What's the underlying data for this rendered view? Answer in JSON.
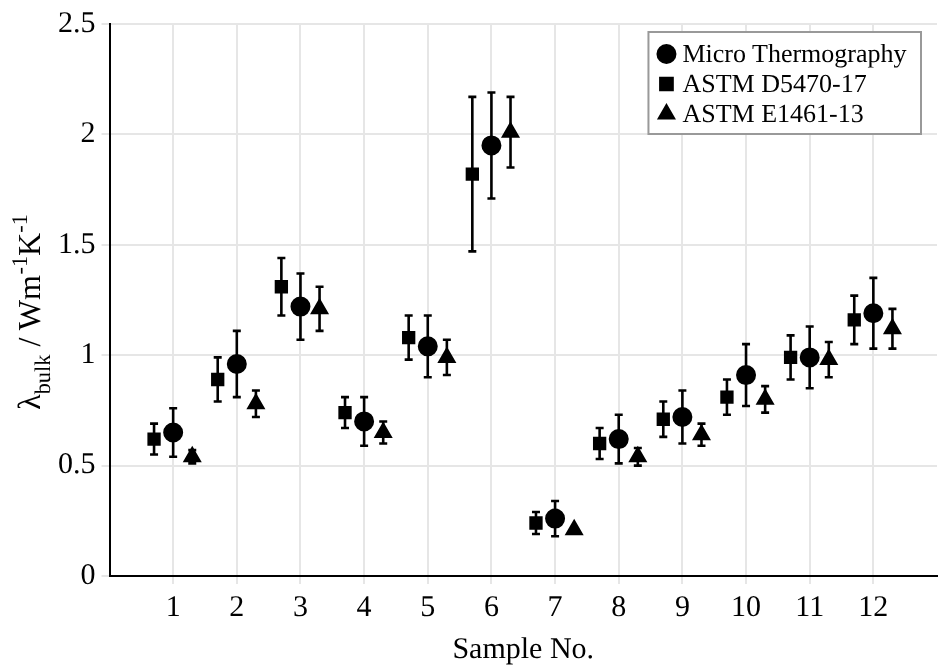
{
  "chart_data": {
    "type": "scatter",
    "xlabel": "Sample No.",
    "ylabel": "λ$_{bulk}$ / Wm$^{-1}$K$^{-1}$",
    "xlim": [
      0,
      13
    ],
    "xticks": [
      1,
      2,
      3,
      4,
      5,
      6,
      7,
      8,
      9,
      10,
      11,
      12
    ],
    "ylim": [
      0,
      2.5
    ],
    "yticks": [
      0,
      0.5,
      1,
      1.5,
      2,
      2.5
    ],
    "grid": true,
    "legend": "top right",
    "series": [
      {
        "name": "Micro Thermography",
        "color": "#000000",
        "marker": "circle",
        "x": [
          1,
          2,
          3,
          4,
          5,
          6,
          7,
          8,
          9,
          10,
          11,
          12
        ],
        "values": [
          0.65,
          0.96,
          1.22,
          0.7,
          1.04,
          1.95,
          0.26,
          0.62,
          0.72,
          0.91,
          0.99,
          1.19
        ],
        "errors": [
          0.11,
          0.15,
          0.15,
          0.11,
          0.14,
          0.24,
          0.08,
          0.11,
          0.12,
          0.14,
          0.14,
          0.16
        ]
      },
      {
        "name": "ASTM D5470-17",
        "color": "#000000",
        "marker": "square",
        "x": [
          0.7,
          1.7,
          2.7,
          3.7,
          4.7,
          5.7,
          6.7,
          7.7,
          8.7,
          9.7,
          10.7,
          11.7
        ],
        "values": [
          0.62,
          0.89,
          1.31,
          0.74,
          1.08,
          1.82,
          0.24,
          0.6,
          0.71,
          0.81,
          0.99,
          1.16
        ],
        "errors": [
          0.07,
          0.1,
          0.13,
          0.07,
          0.1,
          0.35,
          0.05,
          0.07,
          0.08,
          0.08,
          0.1,
          0.11
        ]
      },
      {
        "name": "ASTM E1461-13",
        "color": "#000000",
        "marker": "triangle",
        "x": [
          1.3,
          2.3,
          3.3,
          4.3,
          5.3,
          6.3,
          7.3,
          8.3,
          9.3,
          10.3,
          11.3,
          12.3
        ],
        "values": [
          0.54,
          0.78,
          1.21,
          0.65,
          0.99,
          2.01,
          0.21,
          0.54,
          0.64,
          0.8,
          0.98,
          1.12
        ],
        "errors": [
          0.03,
          0.06,
          0.1,
          0.05,
          0.08,
          0.16,
          null,
          0.04,
          0.05,
          0.06,
          0.08,
          0.09
        ]
      }
    ]
  }
}
